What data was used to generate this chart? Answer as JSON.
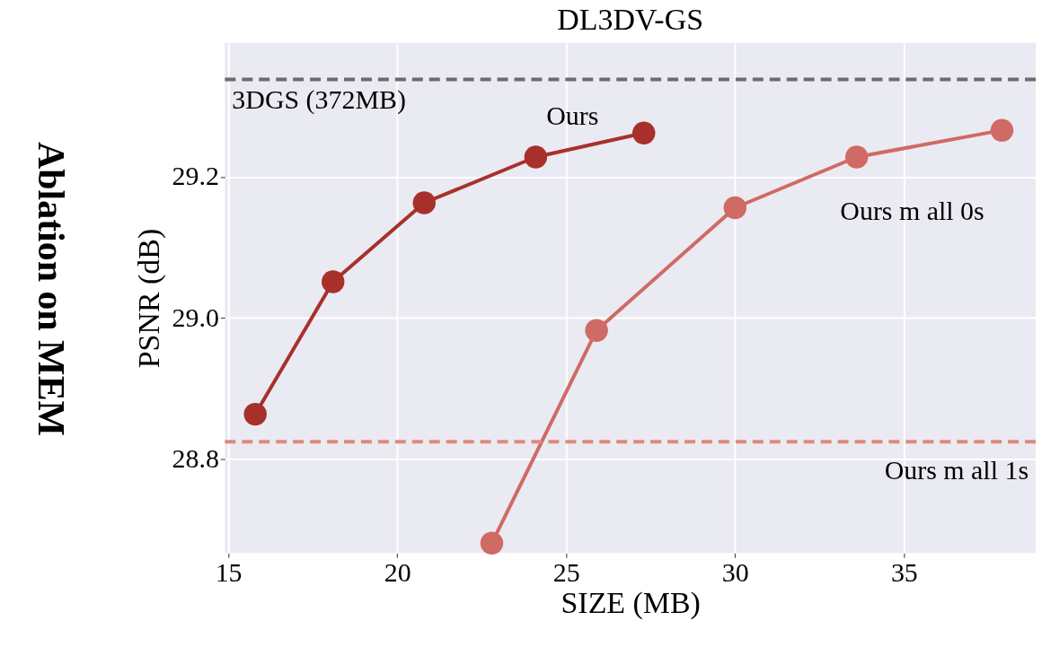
{
  "chart_data": {
    "type": "line",
    "title": "DL3DV-GS",
    "xlabel": "SIZE (MB)",
    "ylabel": "PSNR (dB)",
    "series": [
      {
        "name": "Ours",
        "color": "#a8302b",
        "x": [
          15.8,
          18.1,
          20.8,
          24.1,
          27.3
        ],
        "values": [
          28.863,
          29.051,
          29.163,
          29.228,
          29.262
        ]
      },
      {
        "name": "Ours m all 0s",
        "color": "#cf6a64",
        "x": [
          22.8,
          25.9,
          30.0,
          33.6,
          37.9
        ],
        "values": [
          28.68,
          28.982,
          29.156,
          29.228,
          29.266
        ]
      }
    ],
    "ref_lines": [
      {
        "axis": "y",
        "value": 29.338,
        "label": "3DGS (372MB)",
        "color": "#6b6b6b",
        "line_style": "dashed"
      },
      {
        "axis": "y",
        "value": 28.824,
        "label": "Ours m all 1s",
        "color": "#e08880",
        "line_style": "dashed"
      }
    ],
    "annotations": [
      "Ablation on MEM"
    ],
    "xlim": [
      14.9,
      38.9
    ],
    "ylim": [
      28.666,
      29.39
    ],
    "xticks": [
      15,
      20,
      25,
      30,
      35
    ],
    "yticks": [
      28.8,
      {
        "value": 29,
        "label": "29.0"
      },
      29.2
    ],
    "grid": true,
    "marker": "circle",
    "line_style": "solid"
  }
}
